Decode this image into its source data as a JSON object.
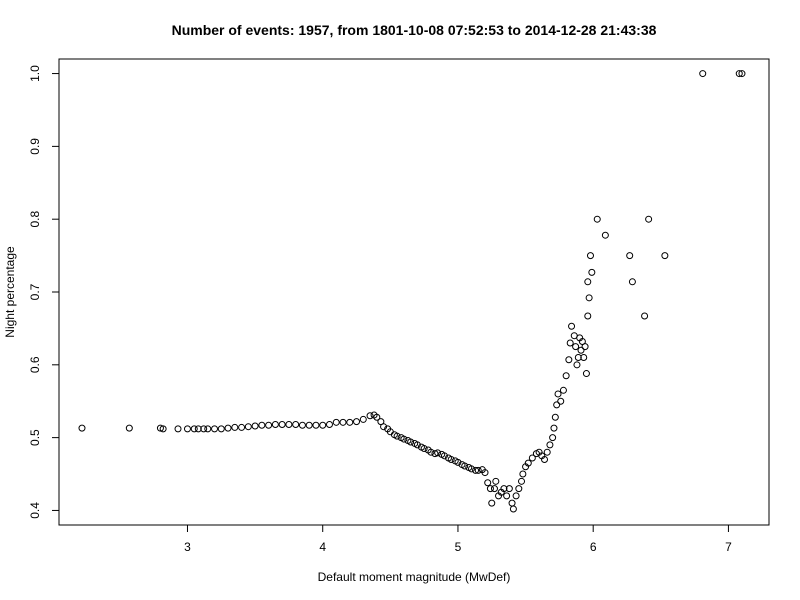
{
  "chart_data": {
    "type": "scatter",
    "title": "Number of events: 1957, from 1801-10-08 07:52:53 to 2014-12-28 21:43:38",
    "xlabel": "Default moment magnitude (MwDef)",
    "ylabel": "Night percentage",
    "xlim": [
      2.05,
      7.3
    ],
    "ylim": [
      0.38,
      1.02
    ],
    "xticks": [
      3,
      4,
      5,
      6,
      7
    ],
    "xtick_labels": [
      "3",
      "4",
      "5",
      "6",
      "7"
    ],
    "yticks": [
      0.4,
      0.5,
      0.6,
      0.7,
      0.8,
      0.9,
      1.0
    ],
    "ytick_labels": [
      "0.4",
      "0.5",
      "0.6",
      "0.7",
      "0.8",
      "0.9",
      "1.0"
    ],
    "grid": false,
    "legend": "none",
    "series": [
      {
        "name": "events",
        "points": [
          [
            2.22,
            0.513
          ],
          [
            2.57,
            0.513
          ],
          [
            2.8,
            0.513
          ],
          [
            2.82,
            0.512
          ],
          [
            2.93,
            0.512
          ],
          [
            3.0,
            0.512
          ],
          [
            3.05,
            0.512
          ],
          [
            3.08,
            0.512
          ],
          [
            3.12,
            0.512
          ],
          [
            3.15,
            0.512
          ],
          [
            3.2,
            0.512
          ],
          [
            3.25,
            0.512
          ],
          [
            3.3,
            0.513
          ],
          [
            3.35,
            0.514
          ],
          [
            3.4,
            0.514
          ],
          [
            3.45,
            0.515
          ],
          [
            3.5,
            0.516
          ],
          [
            3.55,
            0.517
          ],
          [
            3.6,
            0.517
          ],
          [
            3.65,
            0.518
          ],
          [
            3.7,
            0.518
          ],
          [
            3.75,
            0.518
          ],
          [
            3.8,
            0.518
          ],
          [
            3.85,
            0.517
          ],
          [
            3.9,
            0.517
          ],
          [
            3.95,
            0.517
          ],
          [
            4.0,
            0.517
          ],
          [
            4.05,
            0.518
          ],
          [
            4.1,
            0.521
          ],
          [
            4.15,
            0.521
          ],
          [
            4.2,
            0.521
          ],
          [
            4.25,
            0.522
          ],
          [
            4.3,
            0.525
          ],
          [
            4.35,
            0.53
          ],
          [
            4.38,
            0.531
          ],
          [
            4.4,
            0.528
          ],
          [
            4.43,
            0.522
          ],
          [
            4.45,
            0.515
          ],
          [
            4.48,
            0.512
          ],
          [
            4.5,
            0.508
          ],
          [
            4.53,
            0.504
          ],
          [
            4.55,
            0.502
          ],
          [
            4.58,
            0.5
          ],
          [
            4.6,
            0.498
          ],
          [
            4.63,
            0.496
          ],
          [
            4.65,
            0.494
          ],
          [
            4.68,
            0.492
          ],
          [
            4.7,
            0.49
          ],
          [
            4.73,
            0.487
          ],
          [
            4.75,
            0.485
          ],
          [
            4.78,
            0.483
          ],
          [
            4.8,
            0.48
          ],
          [
            4.83,
            0.478
          ],
          [
            4.85,
            0.479
          ],
          [
            4.88,
            0.477
          ],
          [
            4.9,
            0.475
          ],
          [
            4.93,
            0.472
          ],
          [
            4.95,
            0.47
          ],
          [
            4.98,
            0.468
          ],
          [
            5.0,
            0.466
          ],
          [
            5.03,
            0.463
          ],
          [
            5.05,
            0.461
          ],
          [
            5.08,
            0.459
          ],
          [
            5.1,
            0.457
          ],
          [
            5.13,
            0.455
          ],
          [
            5.15,
            0.455
          ],
          [
            5.18,
            0.456
          ],
          [
            5.2,
            0.452
          ],
          [
            5.22,
            0.438
          ],
          [
            5.24,
            0.43
          ],
          [
            5.25,
            0.41
          ],
          [
            5.27,
            0.43
          ],
          [
            5.28,
            0.44
          ],
          [
            5.3,
            0.42
          ],
          [
            5.32,
            0.425
          ],
          [
            5.34,
            0.43
          ],
          [
            5.36,
            0.42
          ],
          [
            5.38,
            0.43
          ],
          [
            5.4,
            0.41
          ],
          [
            5.41,
            0.402
          ],
          [
            5.43,
            0.42
          ],
          [
            5.45,
            0.43
          ],
          [
            5.47,
            0.44
          ],
          [
            5.48,
            0.45
          ],
          [
            5.5,
            0.46
          ],
          [
            5.52,
            0.465
          ],
          [
            5.55,
            0.472
          ],
          [
            5.58,
            0.478
          ],
          [
            5.6,
            0.48
          ],
          [
            5.62,
            0.475
          ],
          [
            5.64,
            0.47
          ],
          [
            5.66,
            0.48
          ],
          [
            5.68,
            0.49
          ],
          [
            5.7,
            0.5
          ],
          [
            5.71,
            0.513
          ],
          [
            5.72,
            0.528
          ],
          [
            5.73,
            0.545
          ],
          [
            5.74,
            0.56
          ],
          [
            5.76,
            0.55
          ],
          [
            5.78,
            0.565
          ],
          [
            5.8,
            0.585
          ],
          [
            5.82,
            0.607
          ],
          [
            5.83,
            0.63
          ],
          [
            5.84,
            0.653
          ],
          [
            5.86,
            0.64
          ],
          [
            5.87,
            0.625
          ],
          [
            5.88,
            0.6
          ],
          [
            5.89,
            0.61
          ],
          [
            5.9,
            0.637
          ],
          [
            5.91,
            0.62
          ],
          [
            5.92,
            0.632
          ],
          [
            5.93,
            0.61
          ],
          [
            5.94,
            0.625
          ],
          [
            5.95,
            0.588
          ],
          [
            5.96,
            0.667
          ],
          [
            5.96,
            0.714
          ],
          [
            5.97,
            0.692
          ],
          [
            5.98,
            0.75
          ],
          [
            5.99,
            0.727
          ],
          [
            6.03,
            0.8
          ],
          [
            6.09,
            0.778
          ],
          [
            6.27,
            0.75
          ],
          [
            6.29,
            0.714
          ],
          [
            6.38,
            0.667
          ],
          [
            6.41,
            0.8
          ],
          [
            6.53,
            0.75
          ],
          [
            6.81,
            1.0
          ],
          [
            7.08,
            1.0
          ],
          [
            7.1,
            1.0
          ]
        ]
      }
    ]
  }
}
